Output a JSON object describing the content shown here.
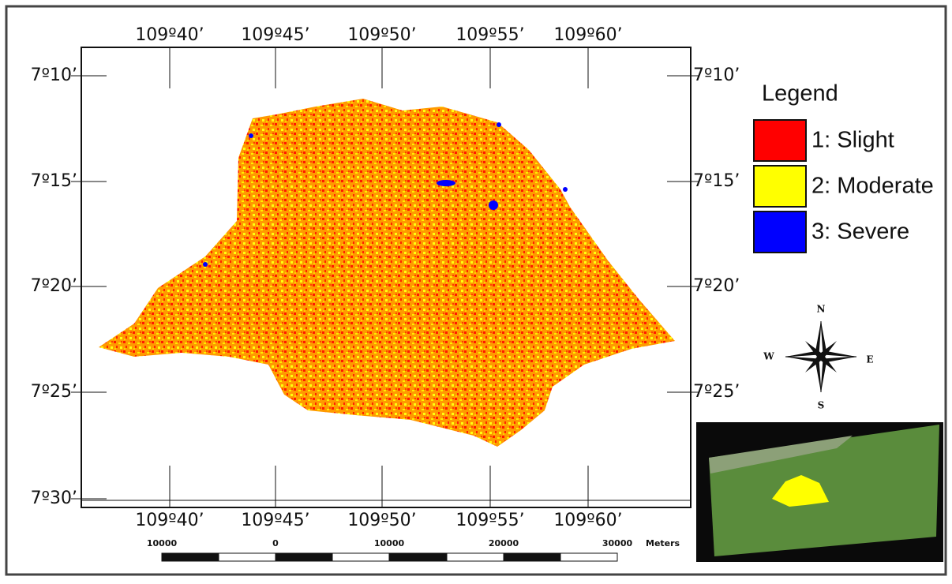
{
  "map": {
    "longitudes": [
      "109º40’",
      "109º45’",
      "109º50’",
      "109º55’",
      "109º60’"
    ],
    "latitudes_left": [
      "7º10’",
      "7º15’",
      "7º20’",
      "7º25’",
      "7º30’"
    ],
    "latitudes_right": [
      "7º10’",
      "7º15’",
      "7º20’",
      "7º25’"
    ],
    "legend": {
      "title": "Legend",
      "items": [
        {
          "label": "1: Slight",
          "color": "#ff0000"
        },
        {
          "label": "2: Moderate",
          "color": "#ffff00"
        },
        {
          "label": "3: Severe",
          "color": "#0000ff"
        }
      ]
    },
    "compass": {
      "n": "N",
      "s": "S",
      "e": "E",
      "w": "W"
    },
    "scale_bar": {
      "labels": [
        "10000",
        "0",
        "10000",
        "20000",
        "30000"
      ],
      "unit": "Meters"
    }
  }
}
